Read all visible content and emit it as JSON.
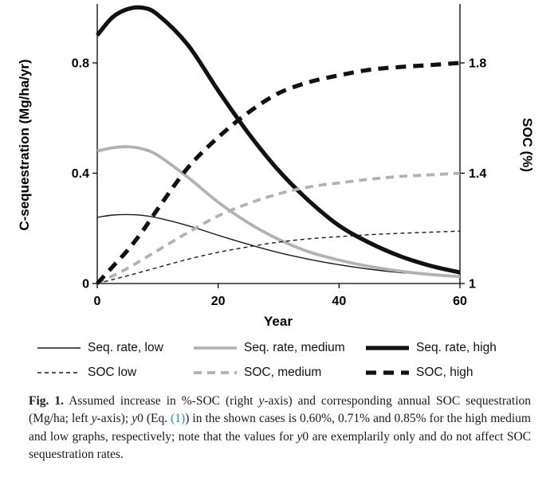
{
  "chart_data": {
    "type": "line",
    "title": "",
    "x_label": "Year",
    "y_left_label": "C-sequestration (Mg/ha/yr)",
    "y_right_label": "SOC (%)",
    "x_range": [
      0,
      60
    ],
    "y_left_range": [
      0,
      1.0
    ],
    "y_right_range": [
      1,
      2.0
    ],
    "x_ticks": [
      0,
      20,
      40,
      60
    ],
    "y_left_ticks": [
      "0",
      "0.4",
      "0.8"
    ],
    "y_right_ticks": [
      "1",
      "1.4",
      "1.8"
    ],
    "grid": "off",
    "legend_position": "bottom",
    "x": [
      0,
      2.5,
      5,
      7.5,
      10,
      15,
      20,
      25,
      30,
      35,
      40,
      45,
      50,
      55,
      60
    ],
    "series": [
      {
        "name": "Seq. rate, low",
        "axis": "left",
        "color": "#1a1a1a",
        "width": 1.4,
        "dash": "",
        "values": [
          0.24,
          0.248,
          0.25,
          0.247,
          0.238,
          0.21,
          0.175,
          0.142,
          0.112,
          0.088,
          0.068,
          0.052,
          0.04,
          0.032,
          0.026
        ]
      },
      {
        "name": "Seq. rate, medium",
        "axis": "left",
        "color": "#b2b2b2",
        "width": 3.8,
        "dash": "",
        "values": [
          0.48,
          0.492,
          0.496,
          0.488,
          0.465,
          0.385,
          0.295,
          0.22,
          0.16,
          0.115,
          0.085,
          0.062,
          0.045,
          0.033,
          0.025
        ]
      },
      {
        "name": "Seq. rate, high",
        "axis": "left",
        "color": "#111111",
        "width": 5.2,
        "dash": "",
        "values": [
          0.9,
          0.965,
          0.995,
          1.0,
          0.975,
          0.865,
          0.7,
          0.545,
          0.41,
          0.3,
          0.21,
          0.148,
          0.1,
          0.065,
          0.04
        ]
      },
      {
        "name": "SOC low",
        "axis": "right",
        "color": "#1a1a1a",
        "width": 1.4,
        "dash": "5 4",
        "values": [
          1.0,
          1.014,
          1.028,
          1.043,
          1.058,
          1.088,
          1.113,
          1.133,
          1.15,
          1.162,
          1.17,
          1.177,
          1.182,
          1.186,
          1.19
        ]
      },
      {
        "name": "SOC, medium",
        "axis": "right",
        "color": "#b2b2b2",
        "width": 3.8,
        "dash": "10 7",
        "values": [
          1.0,
          1.027,
          1.055,
          1.087,
          1.12,
          1.185,
          1.245,
          1.29,
          1.325,
          1.35,
          1.365,
          1.378,
          1.388,
          1.394,
          1.4
        ]
      },
      {
        "name": "SOC, high",
        "axis": "right",
        "color": "#111111",
        "width": 5.2,
        "dash": "13 9",
        "values": [
          1.0,
          1.06,
          1.12,
          1.19,
          1.27,
          1.42,
          1.53,
          1.62,
          1.69,
          1.73,
          1.755,
          1.775,
          1.785,
          1.792,
          1.8
        ]
      }
    ],
    "legend_rows": [
      [
        "Seq. rate, low",
        "Seq. rate, medium",
        "Seq. rate, high"
      ],
      [
        "SOC low",
        "SOC, medium",
        "SOC, high"
      ]
    ]
  },
  "caption": {
    "link_color": "#2e86b5",
    "segments": [
      {
        "t": "Fig. 1.",
        "b": true
      },
      {
        "t": " Assumed increase in %-SOC (right "
      },
      {
        "t": "y",
        "i": true
      },
      {
        "t": "-axis) and corresponding annual SOC sequestration (Mg/ha; left "
      },
      {
        "t": "y",
        "i": true
      },
      {
        "t": "-axis); "
      },
      {
        "t": "y",
        "i": true
      },
      {
        "t": "0 (Eq. "
      },
      {
        "t": "(1)",
        "link": true
      },
      {
        "t": ") in the shown cases is 0.60%, 0.71% and 0.85% for the high medium and low graphs, respectively; note that the values for "
      },
      {
        "t": "y",
        "i": true
      },
      {
        "t": "0 are exemplarily only and do not affect SOC sequestration rates."
      }
    ]
  }
}
